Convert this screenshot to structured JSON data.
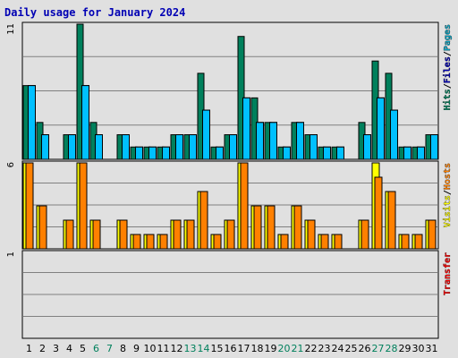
{
  "title": "Daily usage for January 2024",
  "chart_data": [
    {
      "type": "bar",
      "panel": "hits-files-pages",
      "ymax_label": "11",
      "ylim": [
        0,
        11
      ],
      "grid": true,
      "right_label": [
        {
          "text": "Hits",
          "color": "#00805c"
        },
        {
          "text": "/",
          "color": "#000000"
        },
        {
          "text": "Files",
          "color": "#0000b4"
        },
        {
          "text": "/",
          "color": "#000000"
        },
        {
          "text": "Pages",
          "color": "#00a0c0"
        }
      ],
      "series": [
        {
          "name": "Hits",
          "color": "#00805c",
          "values": [
            6,
            3,
            0,
            2,
            11,
            3,
            0,
            2,
            1,
            1,
            1,
            2,
            2,
            7,
            1,
            2,
            10,
            5,
            3,
            1,
            3,
            2,
            1,
            1,
            0,
            3,
            8,
            7,
            1,
            1,
            2
          ]
        },
        {
          "name": "Files",
          "color": "#0080ff",
          "values": [
            6,
            2,
            0,
            2,
            6,
            2,
            0,
            2,
            1,
            1,
            1,
            2,
            2,
            4,
            1,
            2,
            5,
            3,
            3,
            1,
            3,
            2,
            1,
            1,
            0,
            2,
            5,
            4,
            1,
            1,
            2
          ]
        },
        {
          "name": "Pages",
          "color": "#00c0ff",
          "values": [
            6,
            2,
            0,
            2,
            6,
            2,
            0,
            2,
            1,
            1,
            1,
            2,
            2,
            4,
            1,
            2,
            5,
            3,
            3,
            1,
            3,
            2,
            1,
            1,
            0,
            2,
            5,
            4,
            1,
            1,
            2
          ]
        }
      ]
    },
    {
      "type": "bar",
      "panel": "visits-hosts",
      "ymax_label": "6",
      "ylim": [
        0,
        6
      ],
      "grid": true,
      "right_label": [
        {
          "text": "Visits",
          "color": "#ffff00"
        },
        {
          "text": "/",
          "color": "#000000"
        },
        {
          "text": "Hosts",
          "color": "#ff8000"
        }
      ],
      "series": [
        {
          "name": "Visits",
          "color": "#ffff00",
          "values": [
            6,
            3,
            0,
            2,
            6,
            2,
            0,
            2,
            1,
            1,
            1,
            2,
            2,
            4,
            1,
            2,
            6,
            3,
            3,
            1,
            3,
            2,
            1,
            1,
            0,
            2,
            6,
            4,
            1,
            1,
            2
          ]
        },
        {
          "name": "Hosts",
          "color": "#ff8000",
          "values": [
            6,
            3,
            0,
            2,
            6,
            2,
            0,
            2,
            1,
            1,
            1,
            2,
            2,
            4,
            1,
            2,
            6,
            3,
            3,
            1,
            3,
            2,
            1,
            1,
            0,
            2,
            5,
            4,
            1,
            1,
            2
          ]
        }
      ]
    },
    {
      "type": "bar",
      "panel": "transfer",
      "ymax_label": "1",
      "ylim": [
        0,
        1
      ],
      "grid": true,
      "right_label": [
        {
          "text": "Transfer",
          "color": "#ff0000"
        }
      ],
      "series": [
        {
          "name": "Transfer",
          "color": "#ff0000",
          "values": [
            0,
            0,
            0,
            0,
            0,
            0,
            0,
            0,
            0,
            0,
            0,
            0,
            0,
            0,
            0,
            0,
            0,
            0,
            0,
            0,
            0,
            0,
            0,
            0,
            0,
            0,
            0,
            0,
            0,
            0,
            0
          ]
        }
      ]
    }
  ],
  "x_labels": [
    "1",
    "2",
    "3",
    "4",
    "5",
    "6",
    "7",
    "8",
    "9",
    "10",
    "11",
    "12",
    "13",
    "14",
    "15",
    "16",
    "17",
    "18",
    "19",
    "20",
    "21",
    "22",
    "23",
    "24",
    "25",
    "26",
    "27",
    "28",
    "29",
    "30",
    "31"
  ],
  "weekend_days": [
    "6",
    "7",
    "13",
    "14",
    "20",
    "21",
    "27",
    "28"
  ],
  "colors": {
    "background": "#e0e0e0",
    "panel_border": "#000000",
    "grid": "#808080",
    "title": "#0000b4",
    "weekday_label": "#000000",
    "weekend_label": "#00805c"
  }
}
